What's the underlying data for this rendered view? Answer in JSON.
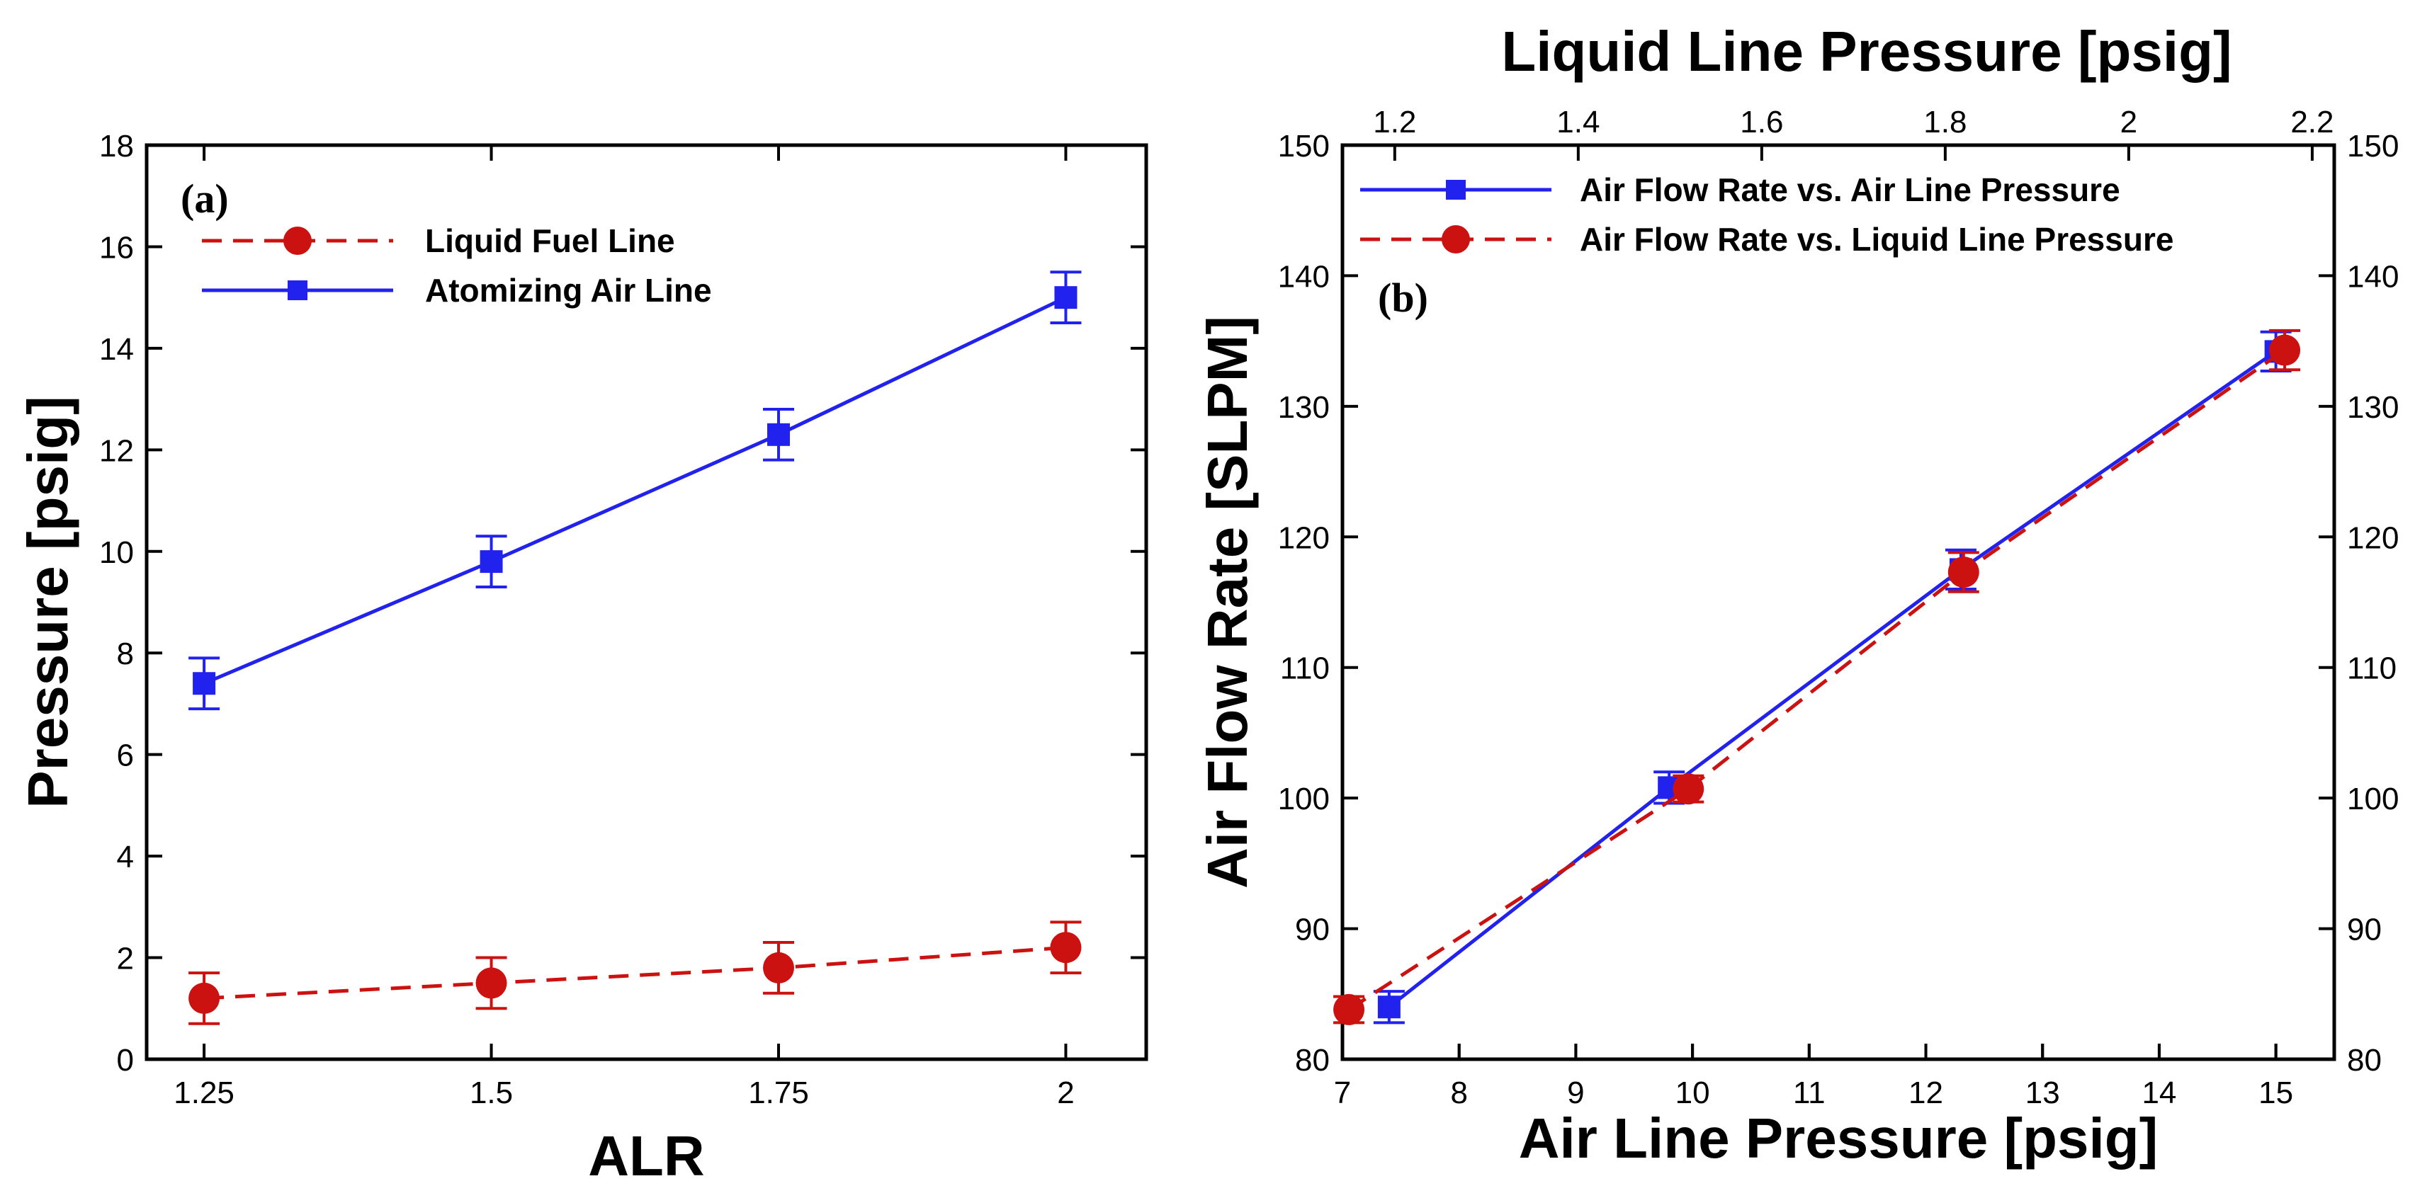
{
  "chart_data": [
    {
      "type": "line",
      "panel_label": "(a)",
      "xlabel": "ALR",
      "ylabel": "Pressure [psig]",
      "xlim": [
        1.2,
        2.07
      ],
      "ylim": [
        0,
        18
      ],
      "xticks": [
        1.25,
        1.5,
        1.75,
        2
      ],
      "xtick_labels": [
        "1.25",
        "1.5",
        "1.75",
        "2"
      ],
      "yticks": [
        0,
        2,
        4,
        6,
        8,
        10,
        12,
        14,
        16,
        18
      ],
      "ytick_labels": [
        "0",
        "2",
        "4",
        "6",
        "8",
        "10",
        "12",
        "14",
        "16",
        "18"
      ],
      "legend_position": "top-left",
      "series": [
        {
          "name": "Liquid Fuel Line",
          "color": "#cc1111",
          "marker": "circle",
          "line_style": "dashed",
          "x": [
            1.25,
            1.5,
            1.75,
            2
          ],
          "y": [
            1.2,
            1.5,
            1.8,
            2.2
          ],
          "error": [
            0.5,
            0.5,
            0.5,
            0.5
          ]
        },
        {
          "name": "Atomizing Air Line",
          "color": "#2222ee",
          "marker": "square",
          "line_style": "solid",
          "x": [
            1.25,
            1.5,
            1.75,
            2
          ],
          "y": [
            7.4,
            9.8,
            12.3,
            15.0
          ],
          "error": [
            0.5,
            0.5,
            0.5,
            0.5
          ]
        }
      ]
    },
    {
      "type": "line",
      "panel_label": "(b)",
      "xlabel": "Air Line Pressure [psig]",
      "x2label": "Liquid Line Pressure [psig]",
      "ylabel": "Air Flow Rate [SLPM]",
      "xlim": [
        7,
        15.5
      ],
      "x2lim": [
        1.143,
        2.224
      ],
      "ylim": [
        80,
        150
      ],
      "xticks": [
        7,
        8,
        9,
        10,
        11,
        12,
        13,
        14,
        15
      ],
      "xtick_labels": [
        "7",
        "8",
        "9",
        "10",
        "11",
        "12",
        "13",
        "14",
        "15"
      ],
      "x2ticks": [
        1.2,
        1.4,
        1.6,
        1.8,
        2,
        2.2
      ],
      "x2tick_labels": [
        "1.2",
        "1.4",
        "1.6",
        "1.8",
        "2",
        "2.2"
      ],
      "yticks": [
        80,
        90,
        100,
        110,
        120,
        130,
        140,
        150
      ],
      "ytick_labels": [
        "80",
        "90",
        "100",
        "110",
        "120",
        "130",
        "140",
        "150"
      ],
      "legend_position": "top-left",
      "series": [
        {
          "name": "Air Flow Rate vs. Air Line Pressure",
          "color": "#2222ee",
          "marker": "square",
          "line_style": "solid",
          "axis": "bottom",
          "x": [
            7.4,
            9.8,
            12.3,
            15.0
          ],
          "y": [
            84,
            100.8,
            117.5,
            134.2
          ],
          "error": [
            1.2,
            1.2,
            1.5,
            1.5
          ]
        },
        {
          "name": "Air Flow Rate vs. Liquid Line Pressure",
          "color": "#cc1111",
          "marker": "circle",
          "line_style": "dashed",
          "axis": "top",
          "x": [
            1.15,
            1.52,
            1.82,
            2.17
          ],
          "y": [
            83.8,
            100.7,
            117.3,
            134.3
          ],
          "error": [
            1.0,
            1.0,
            1.5,
            1.5
          ]
        }
      ]
    }
  ]
}
